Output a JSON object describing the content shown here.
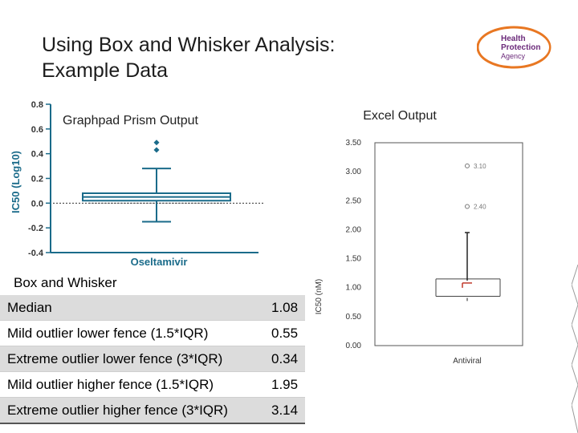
{
  "slide": {
    "title_line1": "Using Box and Whisker Analysis:",
    "title_line2": "Example Data"
  },
  "logo": {
    "line1": "Health",
    "line2": "Protection",
    "line3": "Agency",
    "color": "#6b2a7a",
    "accent": "#e87722"
  },
  "prism": {
    "caption": "Graphpad Prism Output",
    "ylabel": "IC50 (Log10)",
    "xlabel": "Oseltamivir",
    "yticks": [
      "0.8",
      "0.6",
      "0.4",
      "0.2",
      "0.0",
      "-0.2",
      "-0.4"
    ],
    "color": "#1a6b8a"
  },
  "excel": {
    "caption": "Excel Output",
    "ylabel": "IC50 (nM)",
    "xlabel": "Antiviral",
    "yticks": [
      "3.50",
      "3.00",
      "2.50",
      "2.00",
      "1.50",
      "1.00",
      "0.50",
      "0.00"
    ],
    "outlier_labels": [
      "3.10",
      "2.40"
    ]
  },
  "table": {
    "heading": "Box and Whisker",
    "rows": [
      {
        "label": "Median",
        "value": "1.08"
      },
      {
        "label": "Mild outlier lower fence (1.5*IQR)",
        "value": "0.55"
      },
      {
        "label": "Extreme outlier lower fence (3*IQR)",
        "value": "0.34"
      },
      {
        "label": "Mild outlier higher fence (1.5*IQR)",
        "value": "1.95"
      },
      {
        "label": "Extreme outlier higher fence (3*IQR)",
        "value": "3.14"
      }
    ]
  },
  "chart_data": [
    {
      "type": "box",
      "title": "Graphpad Prism Output",
      "xlabel": "Oseltamivir",
      "ylabel": "IC50 (Log10)",
      "ylim": [
        -0.4,
        0.8
      ],
      "categories": [
        "Oseltamivir"
      ],
      "box": {
        "whisker_low": -0.15,
        "q1": 0.02,
        "median": 0.05,
        "q3": 0.08,
        "whisker_high": 0.28
      },
      "outliers": [
        0.43,
        0.49
      ],
      "reference_line": 0.0
    },
    {
      "type": "box",
      "title": "Excel Output",
      "xlabel": "Antiviral",
      "ylabel": "IC50 (nM)",
      "ylim": [
        0,
        3.5
      ],
      "categories": [
        "Antiviral"
      ],
      "box": {
        "whisker_low": 0.77,
        "q1": 0.85,
        "median": 1.08,
        "q3": 1.15,
        "whisker_high": 1.95
      },
      "outliers": [
        3.1,
        2.4
      ]
    }
  ]
}
